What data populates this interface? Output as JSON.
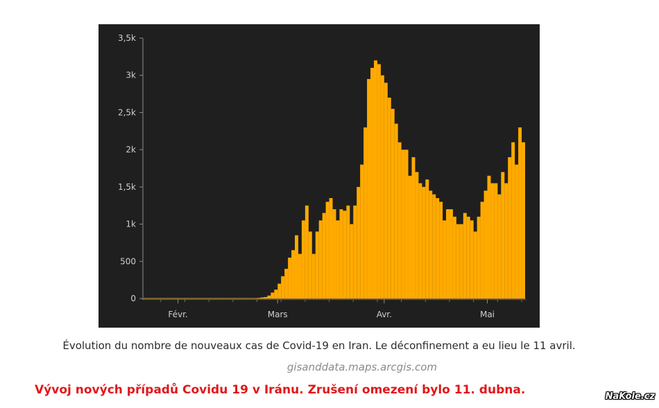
{
  "chart_data": {
    "type": "bar",
    "title": "",
    "xlabel": "",
    "ylabel": "",
    "bar_color": "#ffaa00",
    "background_color": "#1f1f1f",
    "ylim": [
      0,
      3500
    ],
    "y_ticks": [
      0,
      500,
      1000,
      1500,
      2000,
      2500,
      3000,
      3500
    ],
    "y_tick_labels": [
      "0",
      "500",
      "1k",
      "1,5k",
      "2k",
      "2,5k",
      "3k",
      "3,5k"
    ],
    "x_ticks": [
      {
        "label": "Févr.",
        "date": "2020-02-01"
      },
      {
        "label": "Mars",
        "date": "2020-03-01"
      },
      {
        "label": "Avr.",
        "date": "2020-04-01"
      },
      {
        "label": "Mai",
        "date": "2020-05-01"
      }
    ],
    "start_date": "2020-01-22",
    "grid": false,
    "values": [
      0,
      0,
      0,
      0,
      0,
      0,
      0,
      0,
      0,
      0,
      0,
      0,
      0,
      0,
      0,
      0,
      0,
      0,
      0,
      0,
      0,
      0,
      0,
      0,
      0,
      0,
      0,
      0,
      0,
      2,
      3,
      5,
      5,
      8,
      15,
      20,
      40,
      80,
      120,
      200,
      300,
      400,
      550,
      650,
      850,
      600,
      1050,
      1250,
      900,
      600,
      900,
      1050,
      1150,
      1300,
      1350,
      1200,
      1050,
      1200,
      1180,
      1250,
      1000,
      1250,
      1500,
      1800,
      2300,
      2950,
      3100,
      3200,
      3150,
      3000,
      2900,
      2700,
      2550,
      2350,
      2100,
      2000,
      2000,
      1650,
      1900,
      1700,
      1550,
      1500,
      1600,
      1450,
      1400,
      1350,
      1300,
      1050,
      1200,
      1200,
      1100,
      1000,
      1000,
      1150,
      1100,
      1050,
      900,
      1100,
      1300,
      1450,
      1650,
      1550,
      1550,
      1400,
      1700,
      1550,
      1900,
      2100,
      1800,
      2300,
      2100
    ]
  },
  "captions": {
    "fr": "Évolution du nombre de nouveaux cas de Covid-19 en Iran. Le déconfinement a eu lieu le 11 avril.",
    "source": "gisanddata.maps.arcgis.com",
    "cz": "Vývoj nových případů Covidu 19 v Iránu. Zrušení omezení bylo 11. dubna."
  },
  "watermark": "NaKole.cz"
}
